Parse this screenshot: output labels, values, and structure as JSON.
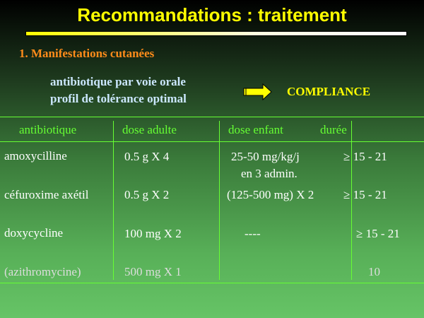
{
  "title": "Recommandations : traitement",
  "section": "1. Manifestations cutanées",
  "notes": [
    "antibiotique par voie orale",
    "profil de tolérance optimal"
  ],
  "arrow_icon": "right-arrow-icon",
  "compliance": "COMPLIANCE",
  "table": {
    "headers": [
      "antibiotique",
      "dose adulte",
      "dose enfant",
      "durée"
    ],
    "rows": [
      {
        "drug": "amoxycilline",
        "adult": "0.5 g  X 4",
        "child": "25-50 mg/kg/j",
        "child2": "en 3 admin.",
        "duration": "≥ 15 - 21"
      },
      {
        "drug": "céfuroxime axétil",
        "adult": "0.5 g X 2",
        "child": "(125-500 mg) X 2",
        "duration": "≥ 15 - 21"
      },
      {
        "drug": "doxycycline",
        "adult": "100 mg X 2",
        "child": "----",
        "duration": "≥ 15 - 21"
      },
      {
        "drug": "(azithromycine)",
        "adult": "500 mg X 1",
        "child": "",
        "duration": "10"
      }
    ]
  }
}
